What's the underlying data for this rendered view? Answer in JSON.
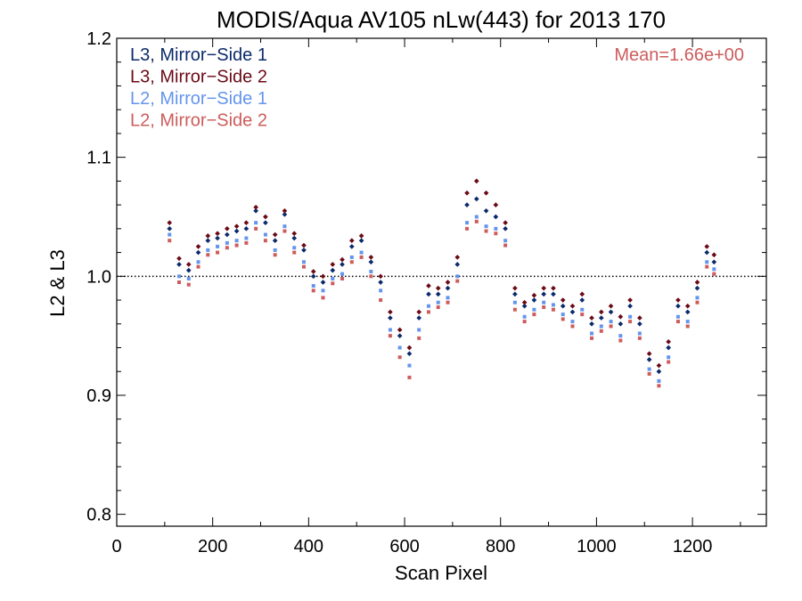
{
  "chart_data": {
    "type": "scatter",
    "title": "MODIS/Aqua AV105 nLw(443) for 2013 170",
    "xlabel": "Scan Pixel",
    "ylabel": "L2 & L3",
    "xlim": [
      0,
      1354
    ],
    "ylim": [
      0.79,
      1.2
    ],
    "xticks": [
      0,
      200,
      400,
      600,
      800,
      1000,
      1200
    ],
    "yticks": [
      0.8,
      0.9,
      1.0,
      1.1,
      1.2
    ],
    "ytick_labels": [
      "0.8",
      "0.9",
      "1.0",
      "1.1",
      "1.2"
    ],
    "reference_line": 1.0,
    "annotation": "Mean=1.66e+00",
    "legend_position": "top-left",
    "grid": false,
    "series": [
      {
        "name": "L3, Mirror−Side 1",
        "color": "#0b2a6b",
        "x": [
          110,
          130,
          150,
          170,
          190,
          210,
          230,
          250,
          270,
          290,
          310,
          330,
          350,
          370,
          390,
          410,
          430,
          450,
          470,
          490,
          510,
          530,
          550,
          570,
          590,
          610,
          630,
          650,
          670,
          690,
          710,
          730,
          750,
          770,
          790,
          810,
          830,
          850,
          870,
          890,
          910,
          930,
          950,
          970,
          990,
          1010,
          1030,
          1050,
          1070,
          1090,
          1110,
          1130,
          1150,
          1170,
          1190,
          1210,
          1230,
          1245
        ],
        "y": [
          1.04,
          1.01,
          1.005,
          1.02,
          1.03,
          1.032,
          1.035,
          1.038,
          1.04,
          1.055,
          1.045,
          1.03,
          1.052,
          1.032,
          1.022,
          1.0,
          0.995,
          1.005,
          1.01,
          1.025,
          1.03,
          1.012,
          0.995,
          0.965,
          0.95,
          0.935,
          0.965,
          0.985,
          0.985,
          0.99,
          1.01,
          1.06,
          1.065,
          1.055,
          1.05,
          1.04,
          0.985,
          0.975,
          0.98,
          0.985,
          0.985,
          0.975,
          0.97,
          0.98,
          0.96,
          0.965,
          0.97,
          0.96,
          0.975,
          0.96,
          0.93,
          0.92,
          0.94,
          0.975,
          0.97,
          0.99,
          1.02,
          1.012
        ]
      },
      {
        "name": "L3, Mirror−Side 2",
        "color": "#6b0a16",
        "x": [
          110,
          130,
          150,
          170,
          190,
          210,
          230,
          250,
          270,
          290,
          310,
          330,
          350,
          370,
          390,
          410,
          430,
          450,
          470,
          490,
          510,
          530,
          550,
          570,
          590,
          610,
          630,
          650,
          670,
          690,
          710,
          730,
          750,
          770,
          790,
          810,
          830,
          850,
          870,
          890,
          910,
          930,
          950,
          970,
          990,
          1010,
          1030,
          1050,
          1070,
          1090,
          1110,
          1130,
          1150,
          1170,
          1190,
          1210,
          1230,
          1245
        ],
        "y": [
          1.045,
          1.015,
          1.01,
          1.025,
          1.034,
          1.036,
          1.04,
          1.042,
          1.045,
          1.058,
          1.05,
          1.035,
          1.055,
          1.036,
          1.026,
          1.004,
          1.0,
          1.01,
          1.014,
          1.03,
          1.034,
          1.016,
          1.0,
          0.97,
          0.955,
          0.94,
          0.97,
          0.992,
          0.99,
          0.995,
          1.016,
          1.07,
          1.08,
          1.07,
          1.06,
          1.045,
          0.99,
          0.978,
          0.984,
          0.99,
          0.99,
          0.98,
          0.975,
          0.985,
          0.965,
          0.97,
          0.975,
          0.966,
          0.98,
          0.965,
          0.935,
          0.925,
          0.945,
          0.98,
          0.975,
          0.995,
          1.025,
          1.018
        ]
      },
      {
        "name": "L2, Mirror−Side 1",
        "color": "#6495ed",
        "x": [
          110,
          130,
          150,
          170,
          190,
          210,
          230,
          250,
          270,
          290,
          310,
          330,
          350,
          370,
          390,
          410,
          430,
          450,
          470,
          490,
          510,
          530,
          550,
          570,
          590,
          610,
          630,
          650,
          670,
          690,
          710,
          730,
          750,
          770,
          790,
          810,
          830,
          850,
          870,
          890,
          910,
          930,
          950,
          970,
          990,
          1010,
          1030,
          1050,
          1070,
          1090,
          1110,
          1130,
          1150,
          1170,
          1190,
          1210,
          1230,
          1245
        ],
        "y": [
          1.035,
          1.0,
          0.998,
          1.012,
          1.022,
          1.025,
          1.028,
          1.03,
          1.032,
          1.045,
          1.035,
          1.022,
          1.042,
          1.024,
          1.012,
          0.992,
          0.988,
          0.998,
          1.002,
          1.016,
          1.02,
          1.004,
          0.988,
          0.955,
          0.94,
          0.925,
          0.955,
          0.975,
          0.978,
          0.982,
          1.0,
          1.045,
          1.05,
          1.042,
          1.04,
          1.03,
          0.978,
          0.966,
          0.972,
          0.978,
          0.976,
          0.968,
          0.962,
          0.972,
          0.952,
          0.958,
          0.962,
          0.95,
          0.966,
          0.952,
          0.922,
          0.912,
          0.932,
          0.966,
          0.962,
          0.982,
          1.012,
          1.006
        ]
      },
      {
        "name": "L2, Mirror−Side 2",
        "color": "#cd5c5c",
        "x": [
          110,
          130,
          150,
          170,
          190,
          210,
          230,
          250,
          270,
          290,
          310,
          330,
          350,
          370,
          390,
          410,
          430,
          450,
          470,
          490,
          510,
          530,
          550,
          570,
          590,
          610,
          630,
          650,
          670,
          690,
          710,
          730,
          750,
          770,
          790,
          810,
          830,
          850,
          870,
          890,
          910,
          930,
          950,
          970,
          990,
          1010,
          1030,
          1050,
          1070,
          1090,
          1110,
          1130,
          1150,
          1170,
          1190,
          1210,
          1230,
          1245
        ],
        "y": [
          1.03,
          0.995,
          0.993,
          1.008,
          1.018,
          1.02,
          1.024,
          1.026,
          1.028,
          1.04,
          1.03,
          1.018,
          1.038,
          1.02,
          1.008,
          0.988,
          0.982,
          0.994,
          0.998,
          1.012,
          1.016,
          1.0,
          0.98,
          0.95,
          0.932,
          0.915,
          0.948,
          0.97,
          0.974,
          0.978,
          0.996,
          1.04,
          1.046,
          1.038,
          1.036,
          1.026,
          0.972,
          0.962,
          0.968,
          0.974,
          0.972,
          0.964,
          0.958,
          0.968,
          0.948,
          0.954,
          0.958,
          0.946,
          0.962,
          0.948,
          0.918,
          0.908,
          0.928,
          0.962,
          0.958,
          0.978,
          1.008,
          1.002
        ]
      }
    ]
  }
}
